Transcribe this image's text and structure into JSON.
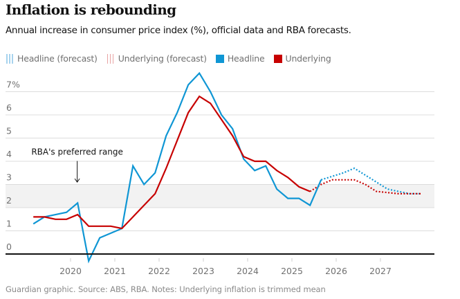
{
  "title": "Inflation is rebounding",
  "subtitle": "Annual increase in consumer price index (%), official data and RBA forecasts.",
  "legend": [
    {
      "label": "Headline (forecast)",
      "style": "dotted",
      "color": "#a7d3ee"
    },
    {
      "label": "Underlying (forecast)",
      "style": "dotted",
      "color": "#e8a3a3"
    },
    {
      "label": "Headline",
      "style": "solid",
      "color": "#0f96d4"
    },
    {
      "label": "Underlying",
      "style": "solid",
      "color": "#c70000"
    }
  ],
  "footer": "Guardian graphic. Source: ABS, RBA. Notes: Underlying inflation is trimmed mean",
  "colors": {
    "headline": "#0f96d4",
    "underlying": "#c70000",
    "band": "#f2f2f2",
    "grid": "#dcdcdc",
    "zero_line": "#121212"
  },
  "chart_data": {
    "type": "line",
    "title": "Inflation is rebounding",
    "subtitle": "Annual increase in consumer price index (%), official data and RBA forecasts.",
    "xlabel": "",
    "ylabel": "",
    "xlim": [
      2018.9,
      2028.2
    ],
    "ylim": [
      -0.4,
      7.8
    ],
    "grid": true,
    "legend_position": "top-left",
    "y_ticks": [
      0,
      1,
      2,
      3,
      4,
      5,
      6,
      7
    ],
    "y_tick_labels": [
      "0",
      "1",
      "2",
      "3",
      "4",
      "5",
      "6",
      "7%"
    ],
    "x_ticks": [
      2020,
      2021,
      2022,
      2023,
      2024,
      2025,
      2026,
      2027
    ],
    "x_tick_labels": [
      "2020",
      "2021",
      "2022",
      "2023",
      "2024",
      "2025",
      "2026",
      "2027"
    ],
    "shaded_band": {
      "from": 2,
      "to": 3,
      "label": "RBA's preferred range"
    },
    "annotations": [
      {
        "text": "RBA's preferred range",
        "x": 2020.15,
        "y": 4.4,
        "arrow_to_y": 3.1
      }
    ],
    "series": [
      {
        "name": "Headline",
        "style": "solid",
        "color": "#0f96d4",
        "x": [
          2019.16,
          2019.41,
          2019.66,
          2019.91,
          2020.16,
          2020.41,
          2020.66,
          2020.91,
          2021.16,
          2021.41,
          2021.66,
          2021.91,
          2022.16,
          2022.41,
          2022.66,
          2022.91,
          2023.16,
          2023.41,
          2023.66,
          2023.91,
          2024.16,
          2024.41,
          2024.66,
          2024.91,
          2025.16,
          2025.41,
          2025.66
        ],
        "values": [
          1.3,
          1.6,
          1.7,
          1.8,
          2.2,
          -0.3,
          0.7,
          0.9,
          1.1,
          3.8,
          3.0,
          3.5,
          5.1,
          6.1,
          7.3,
          7.8,
          7.0,
          6.0,
          5.4,
          4.1,
          3.6,
          3.8,
          2.8,
          2.4,
          2.4,
          2.1,
          3.2
        ]
      },
      {
        "name": "Underlying",
        "style": "solid",
        "color": "#c70000",
        "x": [
          2019.16,
          2019.41,
          2019.66,
          2019.91,
          2020.16,
          2020.41,
          2020.66,
          2020.91,
          2021.16,
          2021.41,
          2021.66,
          2021.91,
          2022.16,
          2022.41,
          2022.66,
          2022.91,
          2023.16,
          2023.41,
          2023.66,
          2023.91,
          2024.16,
          2024.41,
          2024.66,
          2024.91,
          2025.16,
          2025.41
        ],
        "values": [
          1.6,
          1.6,
          1.5,
          1.5,
          1.7,
          1.2,
          1.2,
          1.2,
          1.1,
          1.6,
          2.1,
          2.6,
          3.7,
          4.9,
          6.1,
          6.8,
          6.5,
          5.8,
          5.1,
          4.2,
          4.0,
          4.0,
          3.6,
          3.3,
          2.9,
          2.7
        ]
      },
      {
        "name": "Headline (forecast)",
        "style": "dotted",
        "color": "#0f96d4",
        "x": [
          2025.66,
          2025.91,
          2026.16,
          2026.41,
          2026.66,
          2026.91,
          2027.16,
          2027.41,
          2027.66,
          2027.91
        ],
        "values": [
          3.2,
          3.35,
          3.5,
          3.7,
          3.4,
          3.1,
          2.8,
          2.7,
          2.6,
          2.6
        ]
      },
      {
        "name": "Underlying (forecast)",
        "style": "dotted",
        "color": "#c70000",
        "x": [
          2025.41,
          2025.66,
          2025.91,
          2026.16,
          2026.41,
          2026.66,
          2026.91,
          2027.16,
          2027.41,
          2027.66,
          2027.91
        ],
        "values": [
          2.7,
          3.0,
          3.2,
          3.2,
          3.2,
          3.0,
          2.7,
          2.65,
          2.6,
          2.6,
          2.6
        ]
      }
    ]
  }
}
